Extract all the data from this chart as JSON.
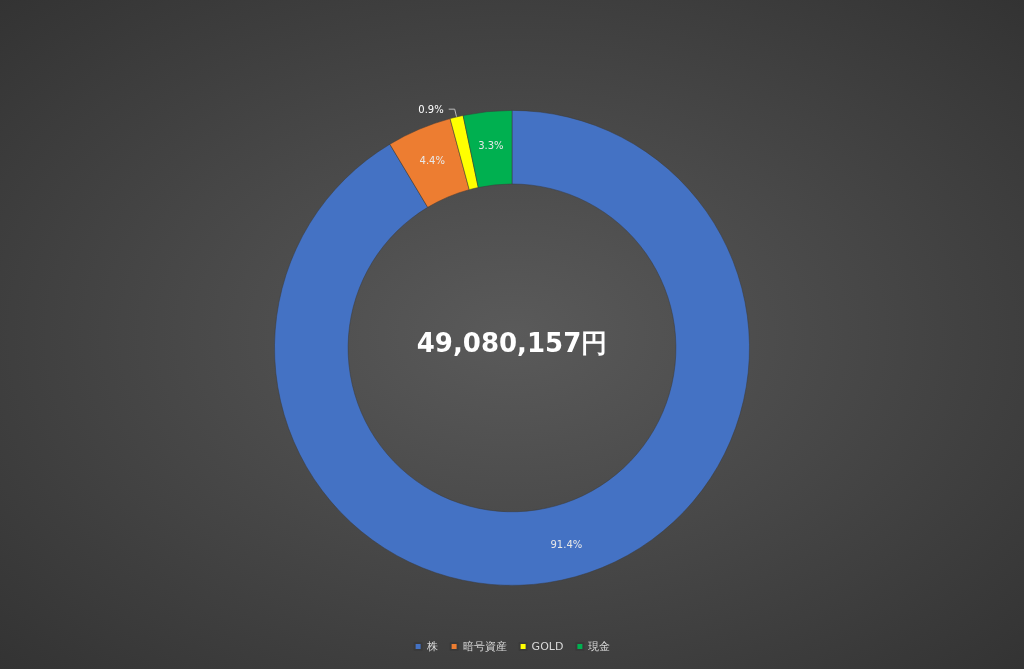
{
  "chart_data": {
    "type": "donut",
    "categories": [
      "株",
      "暗号資産",
      "GOLD",
      "現金"
    ],
    "values": [
      91.4,
      4.4,
      0.9,
      3.3
    ],
    "value_labels": [
      "91.4%",
      "4.4%",
      "0.9%",
      "3.3%"
    ],
    "colors": [
      "#4472c4",
      "#ed7d31",
      "#ffff00",
      "#00b050"
    ],
    "annotations": [
      "49,080,157円"
    ],
    "legend": "bottom"
  }
}
